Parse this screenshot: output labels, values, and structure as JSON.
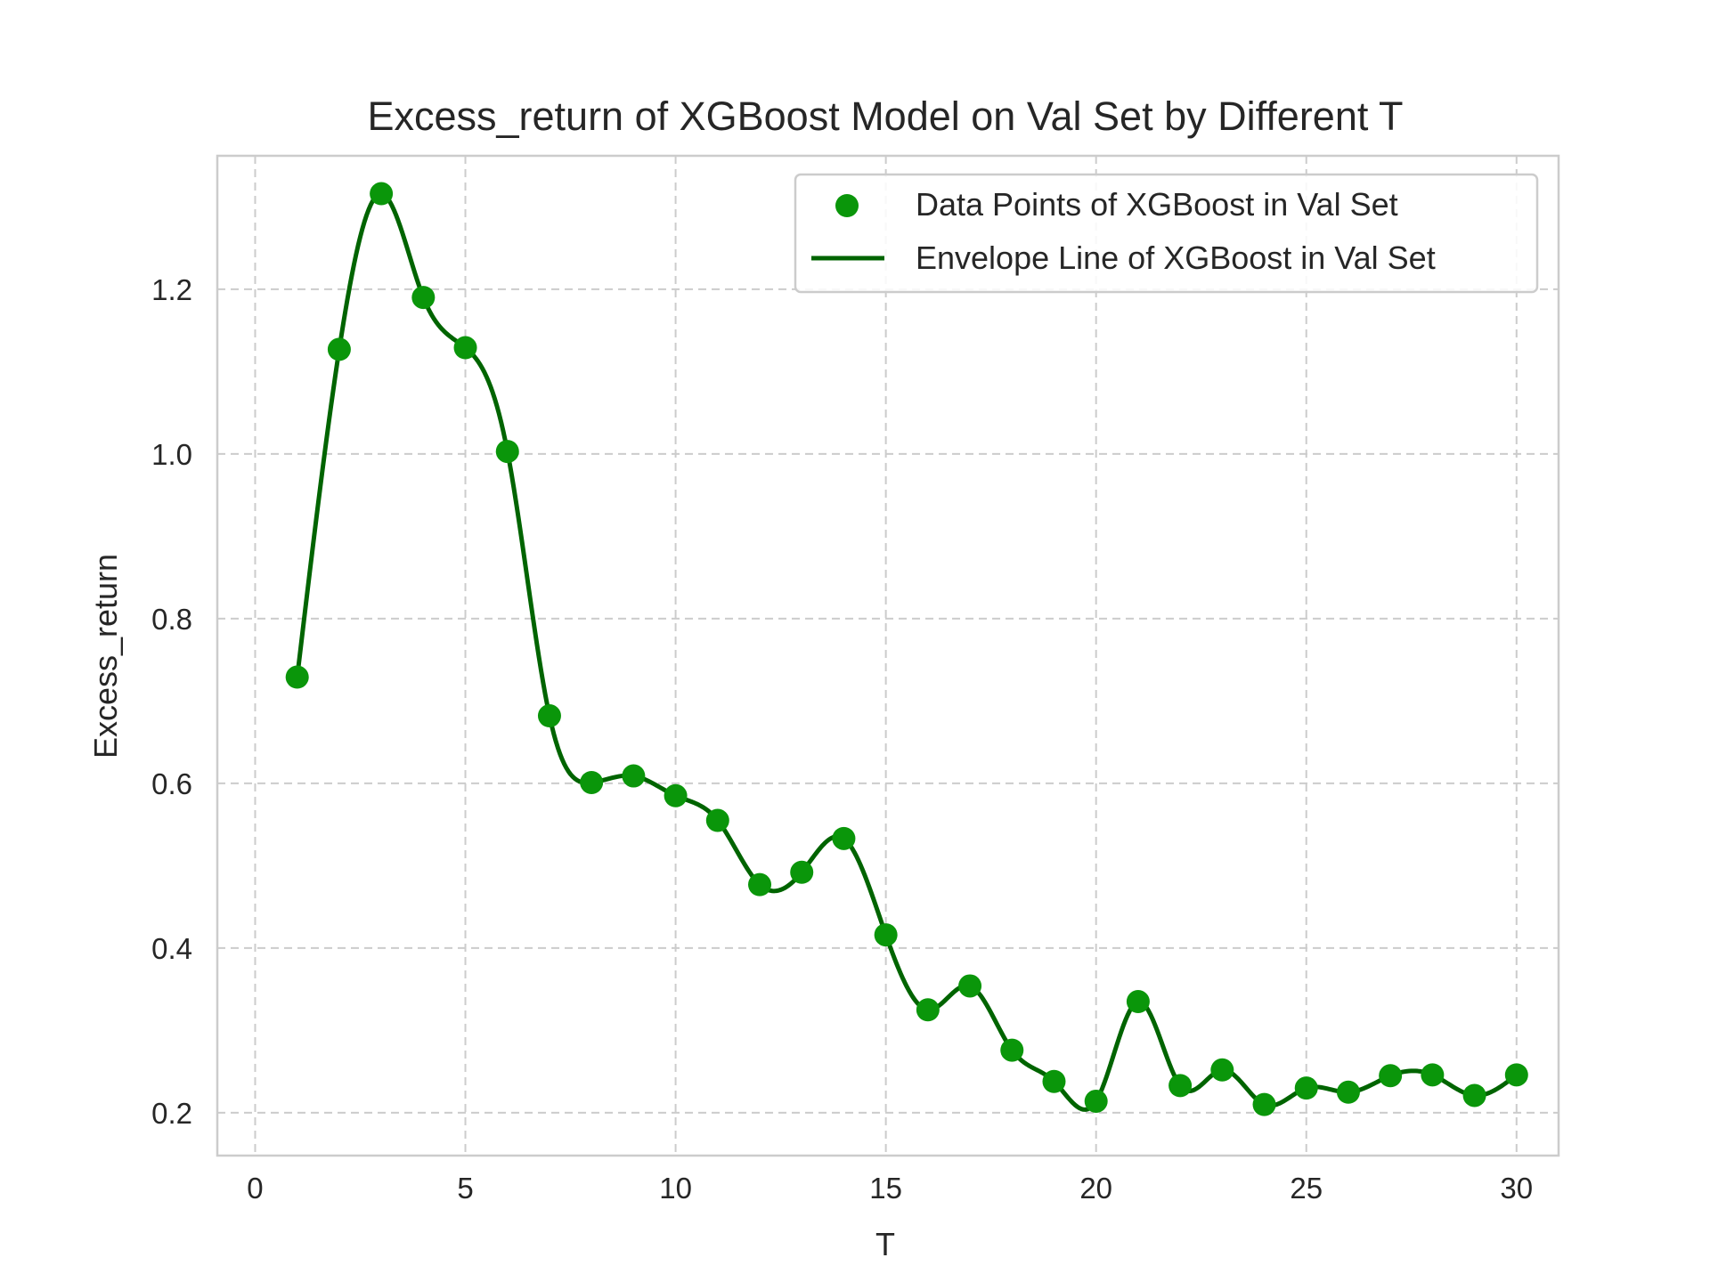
{
  "chart_data": {
    "type": "line",
    "title": "Excess_return of XGBoost Model on Val Set by Different T",
    "xlabel": "T",
    "ylabel": "Excess_return",
    "xlim": [
      -0.9,
      31.0
    ],
    "ylim": [
      0.148,
      1.362
    ],
    "x_ticks": [
      0,
      5,
      10,
      15,
      20,
      25,
      30
    ],
    "x_tick_labels": [
      "0",
      "5",
      "10",
      "15",
      "20",
      "25",
      "30"
    ],
    "y_ticks": [
      0.2,
      0.4,
      0.6,
      0.8,
      1.0,
      1.2
    ],
    "y_tick_labels": [
      "0.2",
      "0.4",
      "0.6",
      "0.8",
      "1.0",
      "1.2"
    ],
    "grid": true,
    "legend_position": "top-right",
    "colors": {
      "points": "#0a960a",
      "line": "#006400",
      "grid": "#cccccc",
      "frame": "#cccccc",
      "text": "#262626"
    },
    "series": [
      {
        "name": "Data Points of XGBoost in Val Set",
        "kind": "scatter",
        "x": [
          1,
          2,
          3,
          4,
          5,
          6,
          7,
          8,
          9,
          10,
          11,
          12,
          13,
          14,
          15,
          16,
          17,
          18,
          19,
          20,
          21,
          22,
          23,
          24,
          25,
          26,
          27,
          28,
          29,
          30
        ],
        "y": [
          0.729,
          1.127,
          1.316,
          1.19,
          1.129,
          1.003,
          0.682,
          0.601,
          0.609,
          0.585,
          0.555,
          0.477,
          0.492,
          0.533,
          0.416,
          0.325,
          0.354,
          0.276,
          0.238,
          0.214,
          0.335,
          0.233,
          0.252,
          0.21,
          0.23,
          0.225,
          0.245,
          0.246,
          0.221,
          0.246
        ]
      },
      {
        "name": "Envelope Line of XGBoost in Val Set",
        "kind": "line",
        "x": [
          1,
          2,
          3,
          4,
          5,
          6,
          7,
          8,
          9,
          10,
          11,
          12,
          13,
          14,
          15,
          16,
          17,
          18,
          19,
          20,
          21,
          22,
          23,
          24,
          25,
          26,
          27,
          28,
          29,
          30
        ],
        "y": [
          0.729,
          1.127,
          1.316,
          1.19,
          1.129,
          1.003,
          0.682,
          0.601,
          0.609,
          0.585,
          0.555,
          0.477,
          0.492,
          0.533,
          0.416,
          0.325,
          0.354,
          0.276,
          0.238,
          0.214,
          0.335,
          0.233,
          0.252,
          0.21,
          0.23,
          0.225,
          0.245,
          0.246,
          0.221,
          0.246
        ]
      }
    ]
  }
}
